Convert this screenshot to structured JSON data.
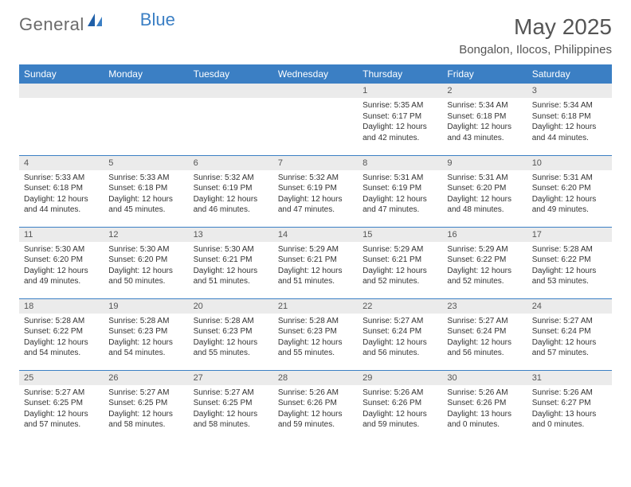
{
  "brand": {
    "part1": "General",
    "part2": "Blue"
  },
  "title": "May 2025",
  "location": "Bongalon, Ilocos, Philippines",
  "colors": {
    "header_bg": "#3b7fc4",
    "header_text": "#ffffff",
    "daynum_bg": "#ebebeb",
    "body_text": "#333333",
    "rule": "#3b7fc4"
  },
  "dayNames": [
    "Sunday",
    "Monday",
    "Tuesday",
    "Wednesday",
    "Thursday",
    "Friday",
    "Saturday"
  ],
  "weeks": [
    [
      {
        "n": "",
        "lines": []
      },
      {
        "n": "",
        "lines": []
      },
      {
        "n": "",
        "lines": []
      },
      {
        "n": "",
        "lines": []
      },
      {
        "n": "1",
        "lines": [
          "Sunrise: 5:35 AM",
          "Sunset: 6:17 PM",
          "Daylight: 12 hours and 42 minutes."
        ]
      },
      {
        "n": "2",
        "lines": [
          "Sunrise: 5:34 AM",
          "Sunset: 6:18 PM",
          "Daylight: 12 hours and 43 minutes."
        ]
      },
      {
        "n": "3",
        "lines": [
          "Sunrise: 5:34 AM",
          "Sunset: 6:18 PM",
          "Daylight: 12 hours and 44 minutes."
        ]
      }
    ],
    [
      {
        "n": "4",
        "lines": [
          "Sunrise: 5:33 AM",
          "Sunset: 6:18 PM",
          "Daylight: 12 hours and 44 minutes."
        ]
      },
      {
        "n": "5",
        "lines": [
          "Sunrise: 5:33 AM",
          "Sunset: 6:18 PM",
          "Daylight: 12 hours and 45 minutes."
        ]
      },
      {
        "n": "6",
        "lines": [
          "Sunrise: 5:32 AM",
          "Sunset: 6:19 PM",
          "Daylight: 12 hours and 46 minutes."
        ]
      },
      {
        "n": "7",
        "lines": [
          "Sunrise: 5:32 AM",
          "Sunset: 6:19 PM",
          "Daylight: 12 hours and 47 minutes."
        ]
      },
      {
        "n": "8",
        "lines": [
          "Sunrise: 5:31 AM",
          "Sunset: 6:19 PM",
          "Daylight: 12 hours and 47 minutes."
        ]
      },
      {
        "n": "9",
        "lines": [
          "Sunrise: 5:31 AM",
          "Sunset: 6:20 PM",
          "Daylight: 12 hours and 48 minutes."
        ]
      },
      {
        "n": "10",
        "lines": [
          "Sunrise: 5:31 AM",
          "Sunset: 6:20 PM",
          "Daylight: 12 hours and 49 minutes."
        ]
      }
    ],
    [
      {
        "n": "11",
        "lines": [
          "Sunrise: 5:30 AM",
          "Sunset: 6:20 PM",
          "Daylight: 12 hours and 49 minutes."
        ]
      },
      {
        "n": "12",
        "lines": [
          "Sunrise: 5:30 AM",
          "Sunset: 6:20 PM",
          "Daylight: 12 hours and 50 minutes."
        ]
      },
      {
        "n": "13",
        "lines": [
          "Sunrise: 5:30 AM",
          "Sunset: 6:21 PM",
          "Daylight: 12 hours and 51 minutes."
        ]
      },
      {
        "n": "14",
        "lines": [
          "Sunrise: 5:29 AM",
          "Sunset: 6:21 PM",
          "Daylight: 12 hours and 51 minutes."
        ]
      },
      {
        "n": "15",
        "lines": [
          "Sunrise: 5:29 AM",
          "Sunset: 6:21 PM",
          "Daylight: 12 hours and 52 minutes."
        ]
      },
      {
        "n": "16",
        "lines": [
          "Sunrise: 5:29 AM",
          "Sunset: 6:22 PM",
          "Daylight: 12 hours and 52 minutes."
        ]
      },
      {
        "n": "17",
        "lines": [
          "Sunrise: 5:28 AM",
          "Sunset: 6:22 PM",
          "Daylight: 12 hours and 53 minutes."
        ]
      }
    ],
    [
      {
        "n": "18",
        "lines": [
          "Sunrise: 5:28 AM",
          "Sunset: 6:22 PM",
          "Daylight: 12 hours and 54 minutes."
        ]
      },
      {
        "n": "19",
        "lines": [
          "Sunrise: 5:28 AM",
          "Sunset: 6:23 PM",
          "Daylight: 12 hours and 54 minutes."
        ]
      },
      {
        "n": "20",
        "lines": [
          "Sunrise: 5:28 AM",
          "Sunset: 6:23 PM",
          "Daylight: 12 hours and 55 minutes."
        ]
      },
      {
        "n": "21",
        "lines": [
          "Sunrise: 5:28 AM",
          "Sunset: 6:23 PM",
          "Daylight: 12 hours and 55 minutes."
        ]
      },
      {
        "n": "22",
        "lines": [
          "Sunrise: 5:27 AM",
          "Sunset: 6:24 PM",
          "Daylight: 12 hours and 56 minutes."
        ]
      },
      {
        "n": "23",
        "lines": [
          "Sunrise: 5:27 AM",
          "Sunset: 6:24 PM",
          "Daylight: 12 hours and 56 minutes."
        ]
      },
      {
        "n": "24",
        "lines": [
          "Sunrise: 5:27 AM",
          "Sunset: 6:24 PM",
          "Daylight: 12 hours and 57 minutes."
        ]
      }
    ],
    [
      {
        "n": "25",
        "lines": [
          "Sunrise: 5:27 AM",
          "Sunset: 6:25 PM",
          "Daylight: 12 hours and 57 minutes."
        ]
      },
      {
        "n": "26",
        "lines": [
          "Sunrise: 5:27 AM",
          "Sunset: 6:25 PM",
          "Daylight: 12 hours and 58 minutes."
        ]
      },
      {
        "n": "27",
        "lines": [
          "Sunrise: 5:27 AM",
          "Sunset: 6:25 PM",
          "Daylight: 12 hours and 58 minutes."
        ]
      },
      {
        "n": "28",
        "lines": [
          "Sunrise: 5:26 AM",
          "Sunset: 6:26 PM",
          "Daylight: 12 hours and 59 minutes."
        ]
      },
      {
        "n": "29",
        "lines": [
          "Sunrise: 5:26 AM",
          "Sunset: 6:26 PM",
          "Daylight: 12 hours and 59 minutes."
        ]
      },
      {
        "n": "30",
        "lines": [
          "Sunrise: 5:26 AM",
          "Sunset: 6:26 PM",
          "Daylight: 13 hours and 0 minutes."
        ]
      },
      {
        "n": "31",
        "lines": [
          "Sunrise: 5:26 AM",
          "Sunset: 6:27 PM",
          "Daylight: 13 hours and 0 minutes."
        ]
      }
    ]
  ]
}
